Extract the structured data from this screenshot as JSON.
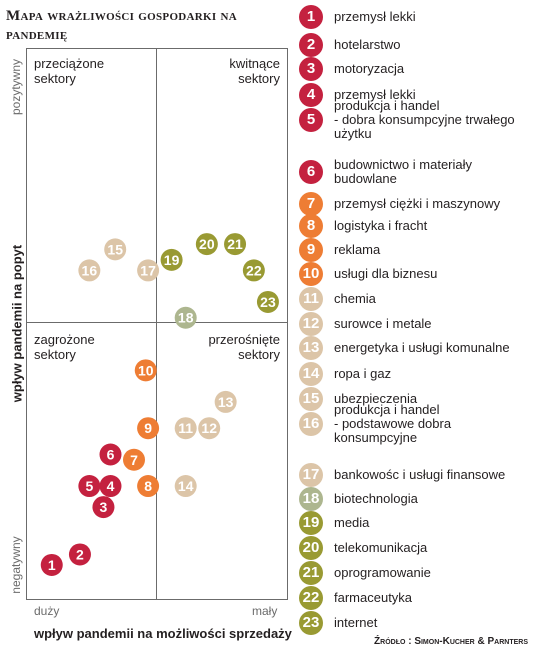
{
  "title": "Mapa wrażliwości gospodarki na pandemię",
  "source": "Źródło : Simon-Kucher & Parnters",
  "quadrants": {
    "top_left": "przeciążone\nsektory",
    "top_right": "kwitnące\nsektory",
    "bottom_left": "zagrożone\nsektory",
    "bottom_right": "przerośnięte\nsektory"
  },
  "colors": {
    "red": "#c4213f",
    "orange": "#ee7d34",
    "beige": "#dcc5a8",
    "sage": "#adb68f",
    "olive": "#999a33"
  },
  "chart_data": {
    "type": "scatter",
    "title": "Mapa wrażliwości gospodarki na pandemię",
    "xlabel": "wpływ pandemii na możliwości sprzedaży",
    "ylabel": "wpływ pandemii na popyt",
    "x_ticks": [
      "duży",
      "mały"
    ],
    "y_ticks": [
      "negatywny",
      "pozytywny"
    ],
    "xlim": [
      0,
      100
    ],
    "ylim": [
      0,
      100
    ],
    "grid": false,
    "points": [
      {
        "id": 1,
        "label": "przemysł lekki",
        "x": 5,
        "y": 4,
        "color": "red"
      },
      {
        "id": 2,
        "label": "hotelarstwo",
        "x": 17,
        "y": 6,
        "color": "red"
      },
      {
        "id": 3,
        "label": "motoryzacja",
        "x": 27,
        "y": 15,
        "color": "red"
      },
      {
        "id": 4,
        "label": "przemysł lekki",
        "x": 30,
        "y": 19,
        "color": "red"
      },
      {
        "id": 5,
        "label": "produkcja i handel\n- dobra konsumpcyjne trwałego\nużytku",
        "x": 21,
        "y": 19,
        "color": "red"
      },
      {
        "id": 6,
        "label": "budownictwo i materiały\nbudowlane",
        "x": 30,
        "y": 25,
        "color": "red"
      },
      {
        "id": 7,
        "label": "przemysł ciężki i maszynowy",
        "x": 40,
        "y": 24,
        "color": "orange"
      },
      {
        "id": 8,
        "label": "logistyka i fracht",
        "x": 46,
        "y": 19,
        "color": "orange"
      },
      {
        "id": 9,
        "label": "reklama",
        "x": 46,
        "y": 30,
        "color": "orange"
      },
      {
        "id": 10,
        "label": "usługi dla biznesu",
        "x": 45,
        "y": 41,
        "color": "orange"
      },
      {
        "id": 11,
        "label": "chemia",
        "x": 62,
        "y": 30,
        "color": "beige"
      },
      {
        "id": 12,
        "label": "surowce i metale",
        "x": 72,
        "y": 30,
        "color": "beige"
      },
      {
        "id": 13,
        "label": "energetyka i usługi komunalne",
        "x": 79,
        "y": 35,
        "color": "beige"
      },
      {
        "id": 14,
        "label": "ropa i gaz",
        "x": 62,
        "y": 19,
        "color": "beige"
      },
      {
        "id": 15,
        "label": "ubezpieczenia",
        "x": 32,
        "y": 64,
        "color": "beige"
      },
      {
        "id": 16,
        "label": "produkcja i handel\n- podstawowe dobra\nkonsumpcyjne",
        "x": 21,
        "y": 60,
        "color": "beige"
      },
      {
        "id": 17,
        "label": "bankowośc i usługi finansowe",
        "x": 46,
        "y": 60,
        "color": "beige"
      },
      {
        "id": 18,
        "label": "biotechnologia",
        "x": 62,
        "y": 51,
        "color": "sage"
      },
      {
        "id": 19,
        "label": "media",
        "x": 56,
        "y": 62,
        "color": "olive"
      },
      {
        "id": 20,
        "label": "telekomunikacja",
        "x": 71,
        "y": 65,
        "color": "olive"
      },
      {
        "id": 21,
        "label": "oprogramowanie",
        "x": 83,
        "y": 65,
        "color": "olive"
      },
      {
        "id": 22,
        "label": "farmaceutyka",
        "x": 91,
        "y": 60,
        "color": "olive"
      },
      {
        "id": 23,
        "label": "internet",
        "x": 97,
        "y": 54,
        "color": "olive"
      }
    ]
  }
}
